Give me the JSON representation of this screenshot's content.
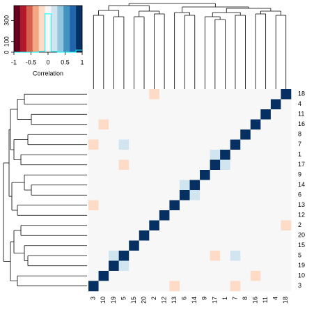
{
  "chart_data": {
    "type": "heatmap",
    "key_title": "Correlation",
    "zlim": [
      -1,
      1
    ],
    "key_xticks": [
      -1,
      -0.5,
      0,
      0.5,
      1
    ],
    "key_ylim": [
      0,
      440
    ],
    "key_yticks": [
      0,
      100,
      300
    ],
    "key_hist_color": "#00FFFF",
    "colors": [
      "#67001F",
      "#B2182B",
      "#D6604D",
      "#F4A582",
      "#FDDBC7",
      "#F7F7F7",
      "#D1E5F0",
      "#92C5DE",
      "#4393C3",
      "#2166AC",
      "#053061"
    ],
    "columns": [
      "3",
      "10",
      "19",
      "5",
      "15",
      "20",
      "2",
      "12",
      "13",
      "6",
      "14",
      "9",
      "17",
      "1",
      "7",
      "8",
      "16",
      "11",
      "4",
      "18"
    ],
    "rows": [
      "18",
      "4",
      "11",
      "16",
      "8",
      "7",
      "1",
      "17",
      "9",
      "14",
      "6",
      "13",
      "12",
      "2",
      "20",
      "15",
      "5",
      "19",
      "10",
      "3"
    ],
    "values": [
      [
        0,
        0,
        0,
        0,
        0,
        0,
        -0.2,
        0,
        0,
        0,
        0,
        0,
        0,
        0,
        0,
        0,
        0,
        0,
        0,
        1
      ],
      [
        0,
        0,
        0,
        0,
        0,
        0,
        0,
        0,
        0,
        0,
        0,
        0,
        0,
        0,
        0,
        0,
        0,
        0,
        1,
        0
      ],
      [
        0,
        0,
        0,
        0,
        0,
        0,
        0,
        0,
        0,
        0,
        0,
        0,
        0,
        0,
        0,
        0,
        0,
        1,
        0,
        0
      ],
      [
        0,
        -0.2,
        0,
        0,
        0,
        0,
        0,
        0,
        0,
        0,
        0,
        0,
        0,
        0,
        0,
        0,
        1,
        0,
        0,
        0
      ],
      [
        0,
        0,
        0,
        0,
        0,
        0,
        0,
        0,
        0,
        0,
        0,
        0,
        0,
        0,
        0,
        1,
        0,
        0,
        0,
        0
      ],
      [
        -0.2,
        0,
        0,
        0.2,
        0,
        0,
        0,
        0,
        0,
        0,
        0,
        0,
        0,
        0,
        1,
        0,
        0,
        0,
        0,
        0
      ],
      [
        0,
        0,
        0,
        0,
        0,
        0,
        0,
        0,
        0,
        0,
        0,
        0,
        0.2,
        1,
        0,
        0,
        0,
        0,
        0,
        0
      ],
      [
        0,
        0,
        0,
        -0.2,
        0,
        0,
        0,
        0,
        0,
        0,
        0,
        0,
        1,
        0.2,
        0,
        0,
        0,
        0,
        0,
        0
      ],
      [
        0,
        0,
        0,
        0,
        0,
        0,
        0,
        0,
        0,
        0,
        0,
        1,
        0,
        0,
        0,
        0,
        0,
        0,
        0,
        0
      ],
      [
        0,
        0,
        0,
        0,
        0,
        0,
        0,
        0,
        0,
        0.2,
        1,
        0,
        0,
        0,
        0,
        0,
        0,
        0,
        0,
        0
      ],
      [
        0,
        0,
        0,
        0,
        0,
        0,
        0,
        0,
        0,
        1,
        0.2,
        0,
        0,
        0,
        0,
        0,
        0,
        0,
        0,
        0
      ],
      [
        -0.2,
        0,
        0,
        0,
        0,
        0,
        0,
        0,
        1,
        0,
        0,
        0,
        0,
        0,
        0,
        0,
        0,
        0,
        0,
        0
      ],
      [
        0,
        0,
        0,
        0,
        0,
        0,
        0,
        1,
        0,
        0,
        0,
        0,
        0,
        0,
        0,
        0,
        0,
        0,
        0,
        0
      ],
      [
        0,
        0,
        0,
        0,
        0,
        0,
        1,
        0,
        0,
        0,
        0,
        0,
        0,
        0,
        0,
        0,
        0,
        0,
        0,
        -0.2
      ],
      [
        0,
        0,
        0,
        0,
        0,
        1,
        0,
        0,
        0,
        0,
        0,
        0,
        0,
        0,
        0,
        0,
        0,
        0,
        0,
        0
      ],
      [
        0,
        0,
        0,
        0,
        1,
        0,
        0,
        0,
        0,
        0,
        0,
        0,
        0,
        0,
        0,
        0,
        0,
        0,
        0,
        0
      ],
      [
        0,
        0,
        0.2,
        1,
        0,
        0,
        0,
        0,
        0,
        0,
        0,
        0,
        -0.2,
        0,
        0.2,
        0,
        0,
        0,
        0,
        0
      ],
      [
        0,
        0,
        1,
        0.2,
        0,
        0,
        0,
        0,
        0,
        0,
        0,
        0,
        0,
        0,
        0,
        0,
        0,
        0,
        0,
        0
      ],
      [
        0,
        1,
        0,
        0,
        0,
        0,
        0,
        0,
        0,
        0,
        0,
        0,
        0,
        0,
        0,
        0,
        -0.2,
        0,
        0,
        0
      ],
      [
        1,
        0,
        0,
        0,
        0,
        0,
        0,
        0,
        -0.2,
        0,
        0,
        0,
        0,
        0,
        -0.2,
        0,
        0,
        0,
        0,
        0
      ]
    ]
  }
}
